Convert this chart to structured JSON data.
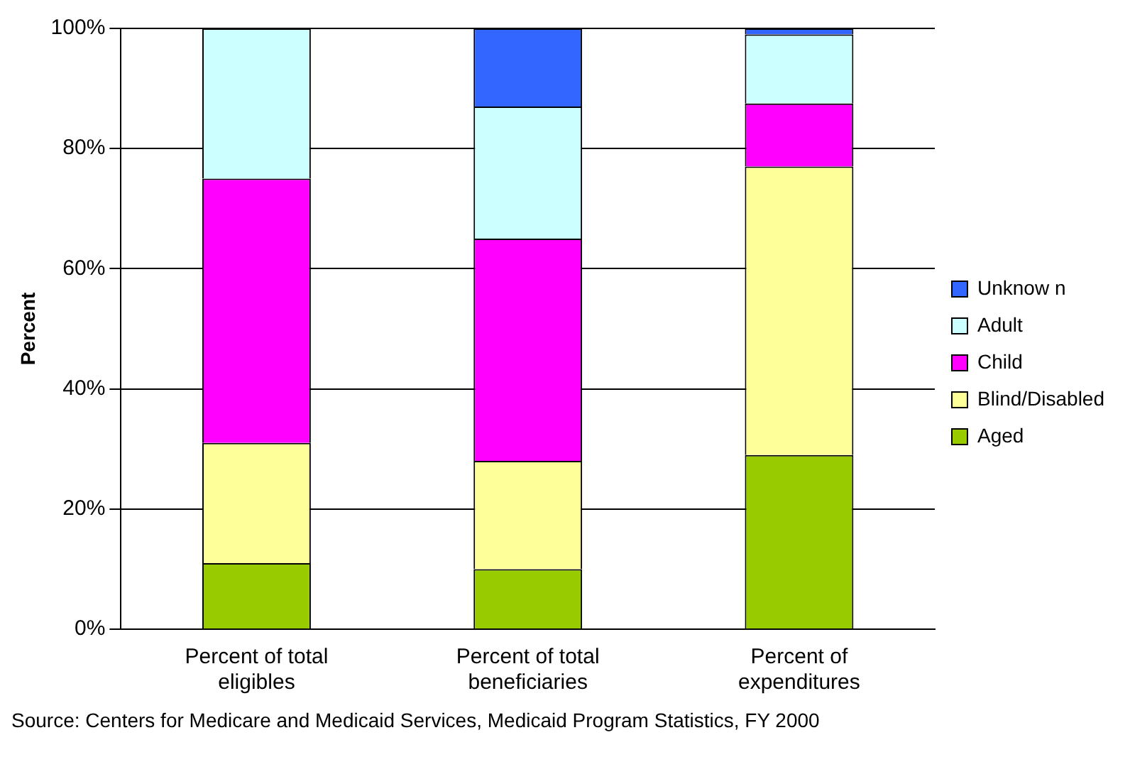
{
  "chart_data": {
    "type": "bar",
    "stacked": true,
    "ylabel": "Percent",
    "categories": [
      "Percent of total eligibles",
      "Percent of total beneficiaries",
      "Percent of expenditures"
    ],
    "series": [
      {
        "name": "Aged",
        "color": "#99cc00",
        "values": [
          11,
          10,
          29
        ]
      },
      {
        "name": "Blind/Disabled",
        "color": "#ffff99",
        "values": [
          20,
          18,
          48
        ]
      },
      {
        "name": "Child",
        "color": "#ff00ff",
        "values": [
          44,
          37,
          10.5
        ]
      },
      {
        "name": "Adult",
        "color": "#ccffff",
        "values": [
          25,
          22,
          11.5
        ]
      },
      {
        "name": "Unknow n",
        "color": "#3366ff",
        "values": [
          0,
          13,
          1
        ]
      }
    ],
    "ylim": [
      0,
      100
    ],
    "yticks": [
      {
        "value": 0,
        "label": "0%"
      },
      {
        "value": 20,
        "label": "20%"
      },
      {
        "value": 40,
        "label": "40%"
      },
      {
        "value": 60,
        "label": "60%"
      },
      {
        "value": 80,
        "label": "80%"
      },
      {
        "value": 100,
        "label": "100%"
      }
    ],
    "grid": "y",
    "legend": "right",
    "annotations": [
      "Source:  Centers for Medicare and Medicaid Services, Medicaid Program Statistics, FY 2000"
    ]
  }
}
